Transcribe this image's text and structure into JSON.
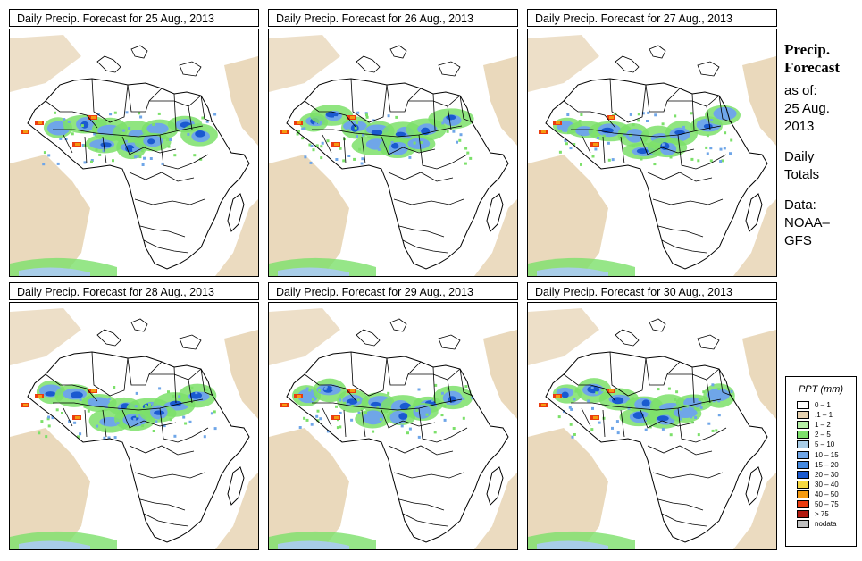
{
  "panels": [
    {
      "title": "Daily Precip. Forecast for  25 Aug., 2013"
    },
    {
      "title": "Daily Precip. Forecast for  26 Aug., 2013"
    },
    {
      "title": "Daily Precip. Forecast for  27 Aug., 2013"
    },
    {
      "title": "Daily Precip. Forecast for  28 Aug., 2013"
    },
    {
      "title": "Daily Precip. Forecast for  29 Aug., 2013"
    },
    {
      "title": "Daily Precip. Forecast for  30 Aug., 2013"
    }
  ],
  "sidebar": {
    "heading1": "Precip.",
    "heading2": "Forecast",
    "asof": "as of:",
    "date1": "25 Aug.",
    "date2": "2013",
    "totals1": "Daily",
    "totals2": "Totals",
    "data1": "Data:",
    "data2": "NOAA–",
    "data3": "GFS"
  },
  "legend": {
    "title": "PPT (mm)",
    "items": [
      {
        "label": "0 – 1",
        "color": "#ffffff"
      },
      {
        "label": ".1 – 1",
        "color": "#e6d2b0"
      },
      {
        "label": "1 – 2",
        "color": "#b6f0a6"
      },
      {
        "label": "2 – 5",
        "color": "#7ce06a"
      },
      {
        "label": "5 – 10",
        "color": "#a8cde8"
      },
      {
        "label": "10 – 15",
        "color": "#6fa6e8"
      },
      {
        "label": "15 – 20",
        "color": "#4489e0"
      },
      {
        "label": "20 – 30",
        "color": "#1a5ad0"
      },
      {
        "label": "30 – 40",
        "color": "#f7d840"
      },
      {
        "label": "40 – 50",
        "color": "#f49a10"
      },
      {
        "label": "50 – 75",
        "color": "#ea3c10"
      },
      {
        "label": "> 75",
        "color": "#b01a10"
      },
      {
        "label": "nodata",
        "color": "#c0c0c0"
      }
    ]
  }
}
